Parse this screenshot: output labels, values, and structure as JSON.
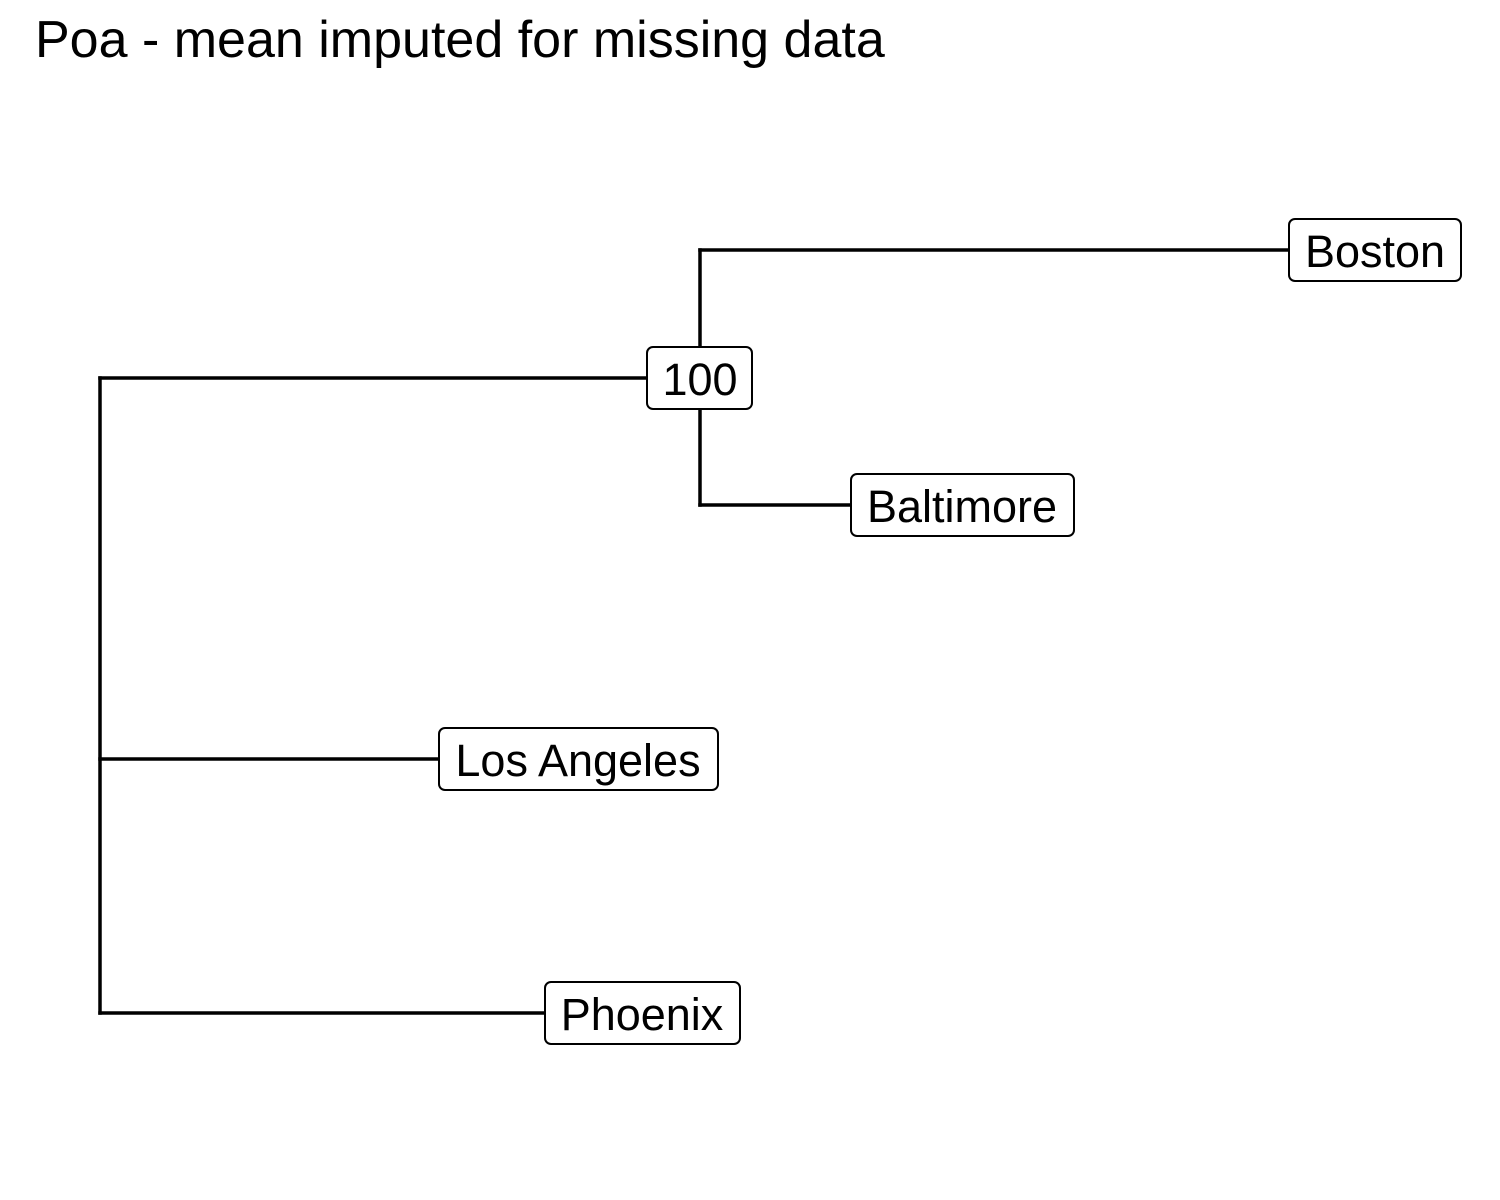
{
  "title": "Poa - mean imputed for missing data",
  "tree": {
    "tips": [
      {
        "id": "boston",
        "label": "Boston"
      },
      {
        "id": "baltimore",
        "label": "Baltimore"
      },
      {
        "id": "los-angeles",
        "label": "Los Angeles"
      },
      {
        "id": "phoenix",
        "label": "Phoenix"
      }
    ],
    "internal_nodes": [
      {
        "id": "clade-boston-baltimore",
        "label": "100"
      }
    ]
  }
}
